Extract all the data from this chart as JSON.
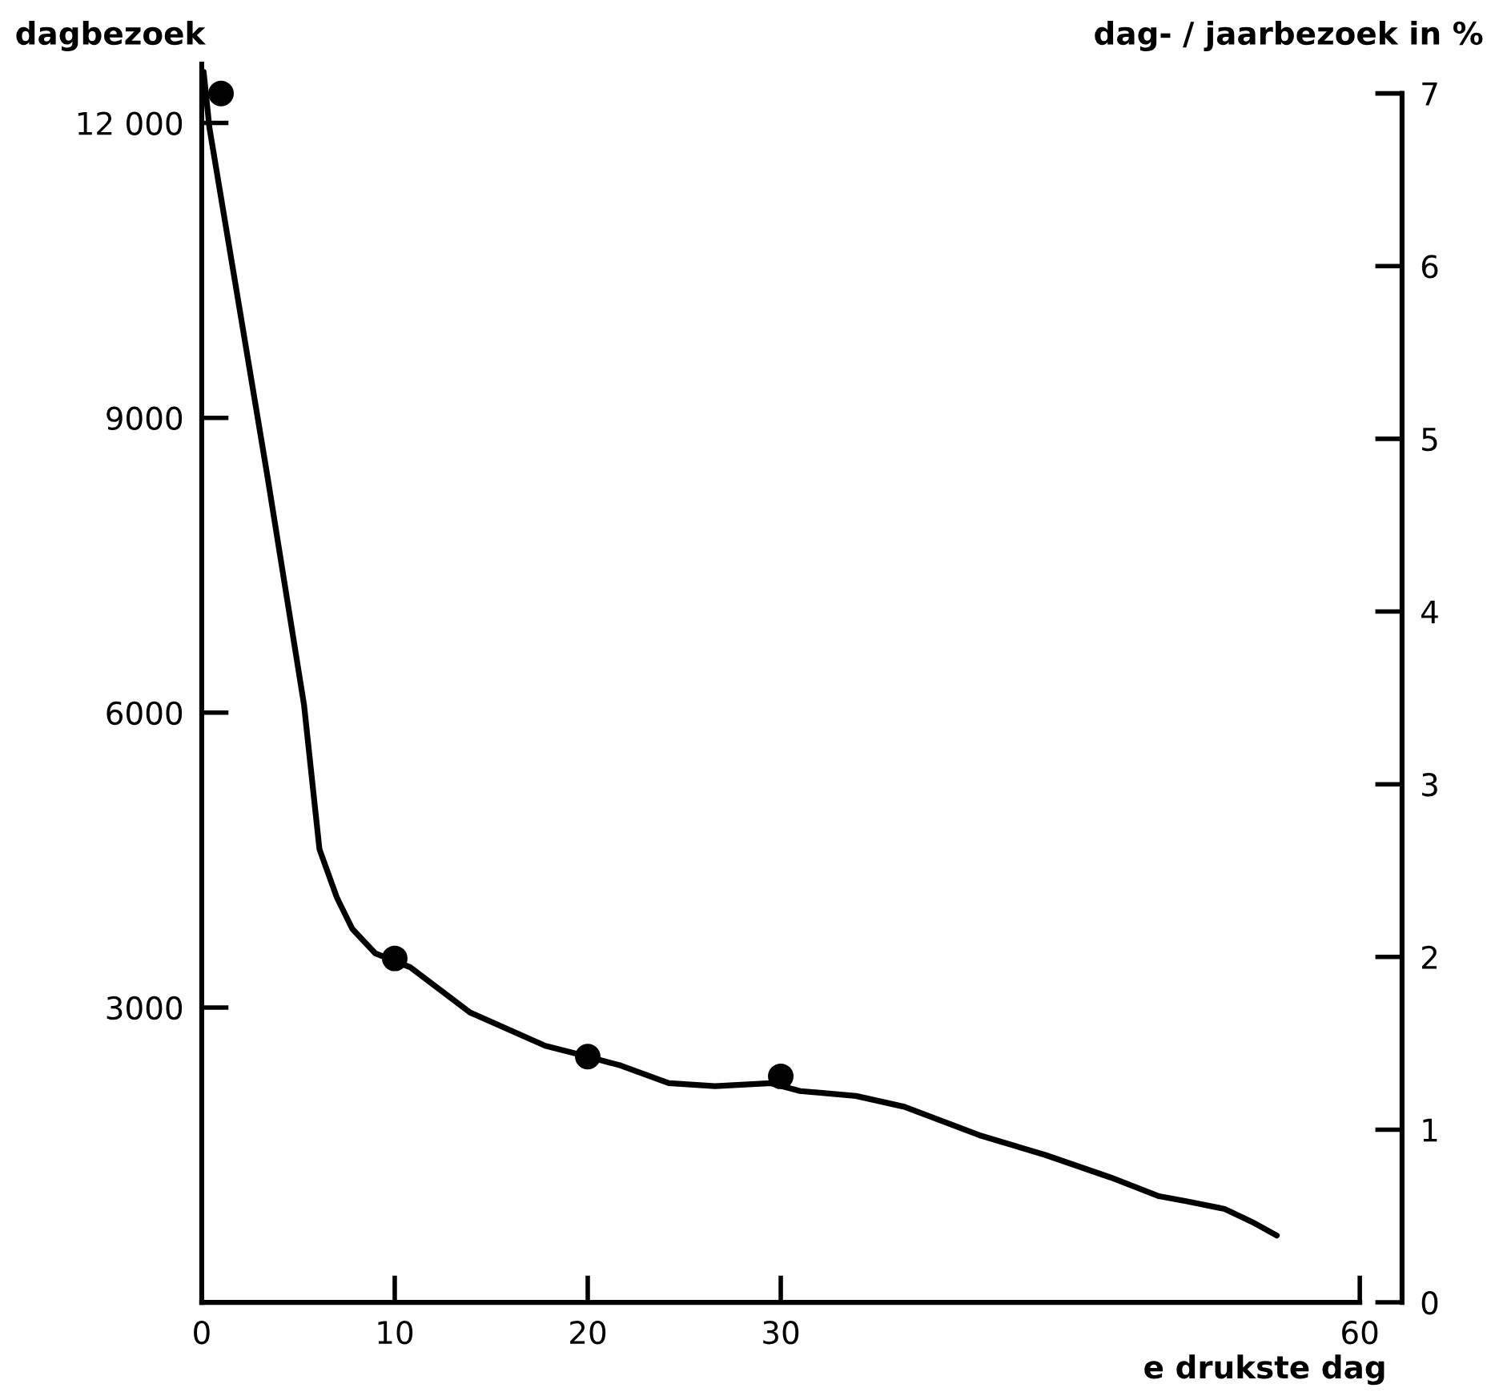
{
  "chart_data": {
    "type": "line",
    "xlabel": "e drukste dag",
    "ylabel": "dagbezoek",
    "y2label": "dag- / jaarbezoek in %",
    "xlim": [
      0,
      60
    ],
    "xticks": [
      0,
      10,
      20,
      30,
      60
    ],
    "ylim": [
      0,
      12600
    ],
    "yticks": [
      3000,
      6000,
      9000,
      {
        "value": 12000,
        "label": "12 000"
      }
    ],
    "y2lim": [
      0,
      7.17
    ],
    "y2ticks": [
      0,
      1,
      2,
      3,
      4,
      5,
      6,
      7
    ],
    "grid": false,
    "legend": false,
    "series": [
      {
        "color": "#000000",
        "marker": "none",
        "line_style": "solid",
        "x": [
          0.1,
          0.4,
          3.4,
          4.5,
          5.3,
          6.1,
          7.0,
          7.8,
          9.0,
          10.8,
          13.9,
          17.8,
          19.8,
          21.7,
          24.2,
          26.6,
          29.5,
          31.0,
          33.9,
          36.4,
          40.3,
          43.7,
          47.1,
          49.6,
          51.0,
          53.0,
          54.4,
          55.7
        ],
        "values": [
          12520,
          11950,
          8410,
          7060,
          6080,
          4610,
          4120,
          3800,
          3550,
          3410,
          2950,
          2610,
          2510,
          2410,
          2230,
          2200,
          2230,
          2150,
          2100,
          1990,
          1700,
          1500,
          1270,
          1080,
          1030,
          950,
          820,
          680
        ]
      },
      {
        "type": "scatter",
        "color": "#000000",
        "marker": "circle",
        "x": [
          1,
          10,
          20,
          30
        ],
        "values": [
          12300,
          3500,
          2500,
          2300
        ]
      }
    ]
  }
}
